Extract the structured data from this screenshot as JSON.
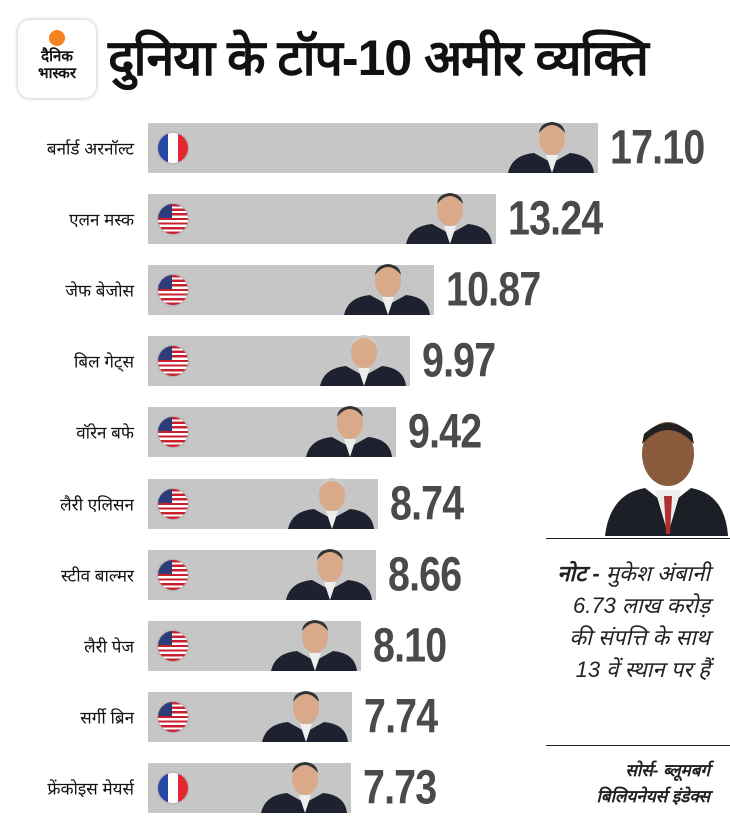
{
  "brand": {
    "line1": "दैनिक",
    "line2": "भास्कर",
    "color": "#f58220"
  },
  "chart_data": {
    "type": "bar",
    "orientation": "horizontal",
    "title": "दुनिया के टॉप-10 अमीर व्यक्ति",
    "categories": [
      "बर्नार्ड अरनॉल्ट",
      "एलन मस्क",
      "जेफ बेजोस",
      "बिल गेट्स",
      "वॉरेन बफे",
      "लैरी एलिसन",
      "स्टीव बाल्मर",
      "लैरी पेज",
      "सर्गी ब्रिन",
      "फ्रेंकोइस मेयर्स"
    ],
    "flags": [
      "france",
      "usa",
      "usa",
      "usa",
      "usa",
      "usa",
      "usa",
      "usa",
      "usa",
      "france"
    ],
    "values": [
      17.1,
      13.24,
      10.87,
      9.97,
      9.42,
      8.74,
      8.66,
      8.1,
      7.74,
      7.73
    ],
    "value_labels": [
      "17.10",
      "13.24",
      "10.87",
      "9.97",
      "9.42",
      "8.74",
      "8.66",
      "8.10",
      "7.74",
      "7.73"
    ],
    "xlim": [
      0,
      17.1
    ],
    "bar_color": "#c6c6c6",
    "label_color": "#4a4a4a"
  },
  "note": {
    "bold": "नोट -",
    "text": "मुकेश अंबानी 6.73 लाख करोड़ की संपत्ति के साथ 13 वें स्थान पर हैं"
  },
  "source": {
    "line1": "सोर्स-  ब्लूमबर्ग",
    "line2": "बिलियनेयर्स इंडेक्स"
  }
}
